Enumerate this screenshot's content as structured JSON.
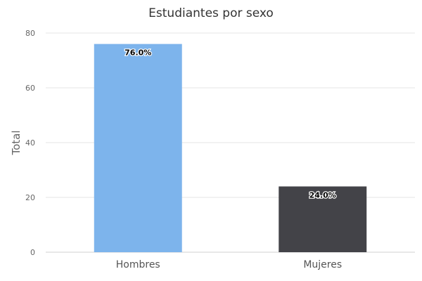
{
  "chart_data": {
    "type": "bar",
    "title": "Estudiantes por sexo",
    "xlabel": "",
    "ylabel": "Total",
    "categories": [
      "Hombres",
      "Mujeres"
    ],
    "values": [
      76,
      24
    ],
    "data_labels": [
      "76.0%",
      "24.0%"
    ],
    "colors": [
      "#7db4ec",
      "#434348"
    ],
    "ylim": [
      0,
      80
    ],
    "yticks": [
      0,
      20,
      40,
      60,
      80
    ],
    "grid": true,
    "legend": false
  }
}
